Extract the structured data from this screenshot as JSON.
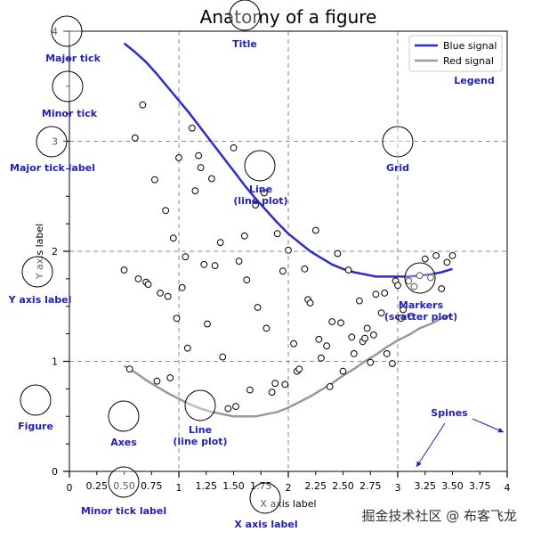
{
  "chart_data": {
    "type": "line",
    "title": "Anatomy of a figure",
    "xlabel": "X axis label",
    "ylabel": "Y axis label",
    "xlim": [
      0,
      4
    ],
    "ylim": [
      0,
      4
    ],
    "grid": true,
    "legend_position": "top-right",
    "x_major_ticks": [
      "0",
      "1",
      "2",
      "3",
      "4"
    ],
    "x_minor_ticks": [
      "0.25",
      "0.50",
      "0.75",
      "1.25",
      "1.50",
      "1.75",
      "2.25",
      "2.50",
      "2.75",
      "3.25",
      "3.50",
      "3.75"
    ],
    "y_major_ticks": [
      "0",
      "1",
      "2",
      "3",
      "4"
    ],
    "series": [
      {
        "name": "Blue signal",
        "color": "#2b2bd0",
        "x": [
          0.5,
          0.6,
          0.7,
          0.8,
          0.9,
          1.0,
          1.1,
          1.2,
          1.3,
          1.4,
          1.5,
          1.6,
          1.7,
          1.8,
          1.9,
          2.0,
          2.1,
          2.2,
          2.3,
          2.4,
          2.5,
          2.6,
          2.7,
          2.8,
          2.9,
          3.0,
          3.1,
          3.2,
          3.3,
          3.4,
          3.5
        ],
        "y": [
          3.89,
          3.81,
          3.72,
          3.61,
          3.49,
          3.37,
          3.25,
          3.12,
          2.99,
          2.86,
          2.73,
          2.6,
          2.48,
          2.37,
          2.26,
          2.16,
          2.08,
          2.0,
          1.94,
          1.88,
          1.84,
          1.81,
          1.79,
          1.77,
          1.77,
          1.77,
          1.77,
          1.78,
          1.79,
          1.81,
          1.84
        ]
      },
      {
        "name": "Red signal",
        "color": "#999999",
        "x": [
          0.5,
          0.6,
          0.7,
          0.8,
          0.9,
          1.0,
          1.1,
          1.2,
          1.3,
          1.4,
          1.5,
          1.6,
          1.7,
          1.8,
          1.9,
          2.0,
          2.1,
          2.2,
          2.3,
          2.4,
          2.5,
          2.6,
          2.7,
          2.8,
          2.9,
          3.0,
          3.1,
          3.2,
          3.3,
          3.4,
          3.5
        ],
        "y": [
          0.96,
          0.9,
          0.83,
          0.77,
          0.71,
          0.66,
          0.61,
          0.57,
          0.54,
          0.52,
          0.5,
          0.5,
          0.5,
          0.52,
          0.54,
          0.58,
          0.63,
          0.68,
          0.74,
          0.8,
          0.87,
          0.93,
          1.0,
          1.06,
          1.13,
          1.19,
          1.24,
          1.3,
          1.34,
          1.39,
          1.42
        ]
      }
    ],
    "scatter": {
      "marker": "circle",
      "x": [
        0.5,
        0.55,
        0.6,
        0.63,
        0.67,
        0.7,
        0.72,
        0.78,
        0.8,
        0.83,
        0.88,
        0.9,
        0.92,
        0.95,
        0.98,
        1.0,
        1.03,
        1.06,
        1.08,
        1.12,
        1.15,
        1.18,
        1.2,
        1.23,
        1.26,
        1.3,
        1.33,
        1.38,
        1.4,
        1.45,
        1.5,
        1.52,
        1.55,
        1.6,
        1.62,
        1.65,
        1.7,
        1.72,
        1.78,
        1.8,
        1.85,
        1.88,
        1.9,
        1.95,
        1.97,
        2.0,
        2.05,
        2.08,
        2.1,
        2.15,
        2.18,
        2.2,
        2.25,
        2.28,
        2.3,
        2.35,
        2.38,
        2.4,
        2.45,
        2.48,
        2.5,
        2.55,
        2.58,
        2.6,
        2.65,
        2.68,
        2.7,
        2.72,
        2.75,
        2.78,
        2.8,
        2.85,
        2.88,
        2.9,
        2.95,
        2.98,
        3.0,
        3.03,
        3.05,
        3.1,
        3.12,
        3.15,
        3.2,
        3.25,
        3.3,
        3.35,
        3.4,
        3.45,
        3.5
      ],
      "y": [
        1.83,
        0.93,
        3.03,
        1.75,
        3.33,
        1.72,
        1.7,
        2.65,
        0.82,
        1.62,
        2.37,
        1.59,
        0.85,
        2.12,
        1.39,
        2.85,
        1.67,
        1.95,
        1.12,
        3.12,
        2.55,
        2.87,
        2.76,
        1.88,
        1.34,
        2.66,
        1.87,
        2.08,
        1.04,
        0.57,
        2.94,
        0.59,
        1.91,
        2.14,
        1.74,
        0.74,
        2.42,
        1.49,
        2.53,
        1.3,
        0.72,
        0.8,
        2.16,
        1.82,
        0.79,
        2.01,
        1.16,
        0.91,
        0.93,
        1.84,
        1.56,
        1.53,
        2.19,
        1.2,
        1.03,
        1.14,
        0.77,
        1.36,
        1.98,
        1.35,
        0.91,
        1.83,
        1.22,
        1.07,
        1.55,
        1.18,
        1.21,
        1.3,
        0.99,
        1.24,
        1.61,
        1.44,
        1.62,
        1.07,
        0.98,
        1.73,
        1.69,
        1.39,
        1.47,
        1.73,
        1.41,
        1.68,
        1.78,
        1.93,
        1.76,
        1.96,
        1.66,
        1.9,
        1.96
      ]
    }
  },
  "annotations": [
    {
      "id": "major-tick",
      "label": "Major tick"
    },
    {
      "id": "minor-tick",
      "label": "Minor tick"
    },
    {
      "id": "major-tick-label",
      "label": "Major tick label"
    },
    {
      "id": "y-axis-label",
      "label": "Y axis label"
    },
    {
      "id": "figure",
      "label": "Figure"
    },
    {
      "id": "axes",
      "label": "Axes"
    },
    {
      "id": "minor-tick-label",
      "label": "Minor tick label"
    },
    {
      "id": "title",
      "label": "Title"
    },
    {
      "id": "line-plot",
      "label": "Line\n(line plot)"
    },
    {
      "id": "grid",
      "label": "Grid"
    },
    {
      "id": "legend",
      "label": "Legend"
    },
    {
      "id": "line-plot-2",
      "label": "Line\n(line plot)"
    },
    {
      "id": "markers",
      "label": "Markers\n(scatter plot)"
    },
    {
      "id": "spines",
      "label": "Spines"
    },
    {
      "id": "x-axis-label",
      "label": "X axis label"
    }
  ],
  "colors": {
    "annotation": "#2121b8",
    "spines_arrow": "#2121b8"
  },
  "watermark": "掘金技术社区 @ 布客飞龙"
}
